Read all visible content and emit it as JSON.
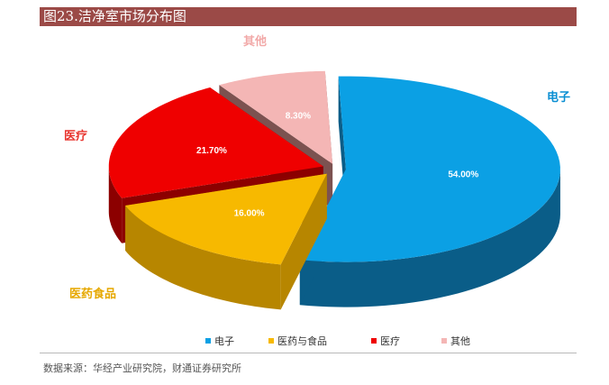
{
  "title": "图23.洁净室市场分布图",
  "source": "数据来源：华经产业研究院，财通证券研究所",
  "chart_data": {
    "type": "pie",
    "style": "3d-exploded",
    "slices": [
      {
        "label": "电子",
        "legend_label": "电子",
        "value": 54.0,
        "value_label": "54.00%",
        "color": "#0ba0e4",
        "side_color": "#0a5d88",
        "label_color": "#0b8fd3"
      },
      {
        "label": "医药食品",
        "legend_label": "医药与食品",
        "value": 16.0,
        "value_label": "16.00%",
        "color": "#f7b900",
        "side_color": "#b78600",
        "label_color": "#e6a800"
      },
      {
        "label": "医疗",
        "legend_label": "医疗",
        "value": 21.7,
        "value_label": "21.70%",
        "color": "#ef0000",
        "side_color": "#8c0000",
        "label_color": "#e8342e"
      },
      {
        "label": "其他",
        "legend_label": "其他",
        "value": 8.3,
        "value_label": "8.30%",
        "color": "#f4b6b5",
        "side_color": "#7c5250",
        "label_color": "#f2a9a8"
      }
    ],
    "legend_position": "bottom"
  }
}
